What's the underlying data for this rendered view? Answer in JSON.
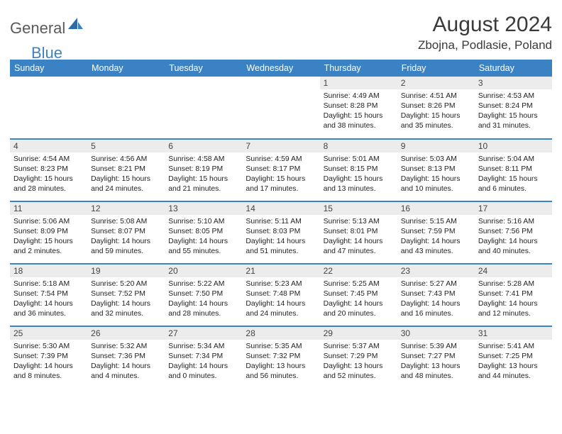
{
  "logo": {
    "general": "General",
    "blue": "Blue"
  },
  "title": "August 2024",
  "location": "Zbojna, Podlasie, Poland",
  "colors": {
    "header_bg": "#3b82c4",
    "header_text": "#ffffff",
    "daynum_bg": "#ececec",
    "border": "#3b82c4",
    "logo_gray": "#5a5a5a",
    "logo_blue": "#3b82c4"
  },
  "day_labels": [
    "Sunday",
    "Monday",
    "Tuesday",
    "Wednesday",
    "Thursday",
    "Friday",
    "Saturday"
  ],
  "weeks": [
    [
      {
        "n": "",
        "sr": "",
        "ss": "",
        "dl": ""
      },
      {
        "n": "",
        "sr": "",
        "ss": "",
        "dl": ""
      },
      {
        "n": "",
        "sr": "",
        "ss": "",
        "dl": ""
      },
      {
        "n": "",
        "sr": "",
        "ss": "",
        "dl": ""
      },
      {
        "n": "1",
        "sr": "4:49 AM",
        "ss": "8:28 PM",
        "dl": "15 hours and 38 minutes."
      },
      {
        "n": "2",
        "sr": "4:51 AM",
        "ss": "8:26 PM",
        "dl": "15 hours and 35 minutes."
      },
      {
        "n": "3",
        "sr": "4:53 AM",
        "ss": "8:24 PM",
        "dl": "15 hours and 31 minutes."
      }
    ],
    [
      {
        "n": "4",
        "sr": "4:54 AM",
        "ss": "8:23 PM",
        "dl": "15 hours and 28 minutes."
      },
      {
        "n": "5",
        "sr": "4:56 AM",
        "ss": "8:21 PM",
        "dl": "15 hours and 24 minutes."
      },
      {
        "n": "6",
        "sr": "4:58 AM",
        "ss": "8:19 PM",
        "dl": "15 hours and 21 minutes."
      },
      {
        "n": "7",
        "sr": "4:59 AM",
        "ss": "8:17 PM",
        "dl": "15 hours and 17 minutes."
      },
      {
        "n": "8",
        "sr": "5:01 AM",
        "ss": "8:15 PM",
        "dl": "15 hours and 13 minutes."
      },
      {
        "n": "9",
        "sr": "5:03 AM",
        "ss": "8:13 PM",
        "dl": "15 hours and 10 minutes."
      },
      {
        "n": "10",
        "sr": "5:04 AM",
        "ss": "8:11 PM",
        "dl": "15 hours and 6 minutes."
      }
    ],
    [
      {
        "n": "11",
        "sr": "5:06 AM",
        "ss": "8:09 PM",
        "dl": "15 hours and 2 minutes."
      },
      {
        "n": "12",
        "sr": "5:08 AM",
        "ss": "8:07 PM",
        "dl": "14 hours and 59 minutes."
      },
      {
        "n": "13",
        "sr": "5:10 AM",
        "ss": "8:05 PM",
        "dl": "14 hours and 55 minutes."
      },
      {
        "n": "14",
        "sr": "5:11 AM",
        "ss": "8:03 PM",
        "dl": "14 hours and 51 minutes."
      },
      {
        "n": "15",
        "sr": "5:13 AM",
        "ss": "8:01 PM",
        "dl": "14 hours and 47 minutes."
      },
      {
        "n": "16",
        "sr": "5:15 AM",
        "ss": "7:59 PM",
        "dl": "14 hours and 43 minutes."
      },
      {
        "n": "17",
        "sr": "5:16 AM",
        "ss": "7:56 PM",
        "dl": "14 hours and 40 minutes."
      }
    ],
    [
      {
        "n": "18",
        "sr": "5:18 AM",
        "ss": "7:54 PM",
        "dl": "14 hours and 36 minutes."
      },
      {
        "n": "19",
        "sr": "5:20 AM",
        "ss": "7:52 PM",
        "dl": "14 hours and 32 minutes."
      },
      {
        "n": "20",
        "sr": "5:22 AM",
        "ss": "7:50 PM",
        "dl": "14 hours and 28 minutes."
      },
      {
        "n": "21",
        "sr": "5:23 AM",
        "ss": "7:48 PM",
        "dl": "14 hours and 24 minutes."
      },
      {
        "n": "22",
        "sr": "5:25 AM",
        "ss": "7:45 PM",
        "dl": "14 hours and 20 minutes."
      },
      {
        "n": "23",
        "sr": "5:27 AM",
        "ss": "7:43 PM",
        "dl": "14 hours and 16 minutes."
      },
      {
        "n": "24",
        "sr": "5:28 AM",
        "ss": "7:41 PM",
        "dl": "14 hours and 12 minutes."
      }
    ],
    [
      {
        "n": "25",
        "sr": "5:30 AM",
        "ss": "7:39 PM",
        "dl": "14 hours and 8 minutes."
      },
      {
        "n": "26",
        "sr": "5:32 AM",
        "ss": "7:36 PM",
        "dl": "14 hours and 4 minutes."
      },
      {
        "n": "27",
        "sr": "5:34 AM",
        "ss": "7:34 PM",
        "dl": "14 hours and 0 minutes."
      },
      {
        "n": "28",
        "sr": "5:35 AM",
        "ss": "7:32 PM",
        "dl": "13 hours and 56 minutes."
      },
      {
        "n": "29",
        "sr": "5:37 AM",
        "ss": "7:29 PM",
        "dl": "13 hours and 52 minutes."
      },
      {
        "n": "30",
        "sr": "5:39 AM",
        "ss": "7:27 PM",
        "dl": "13 hours and 48 minutes."
      },
      {
        "n": "31",
        "sr": "5:41 AM",
        "ss": "7:25 PM",
        "dl": "13 hours and 44 minutes."
      }
    ]
  ],
  "labels": {
    "sunrise": "Sunrise:",
    "sunset": "Sunset:",
    "daylight": "Daylight:"
  }
}
